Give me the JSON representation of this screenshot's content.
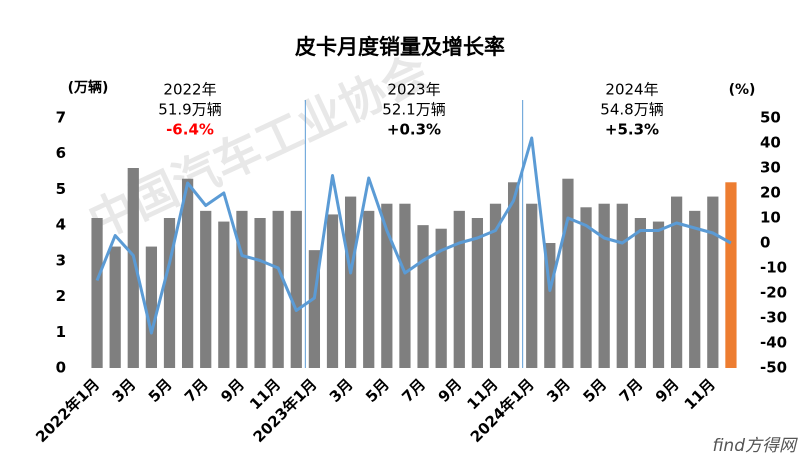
{
  "chart_data": {
    "type": "bar_line",
    "title": "皮卡月度销量及增长率",
    "y_label": "(万辆)",
    "y2_label": "(%)",
    "categories": [
      "2022年1月",
      null,
      "3月",
      null,
      "5月",
      null,
      "7月",
      null,
      "9月",
      null,
      "11月",
      null,
      "2023年1月",
      null,
      "3月",
      null,
      "5月",
      null,
      "7月",
      null,
      "9月",
      null,
      "11月",
      null,
      "2024年1月",
      null,
      "3月",
      null,
      "5月",
      null,
      "7月",
      null,
      "9月",
      null,
      "11月",
      null
    ],
    "series": [
      {
        "type": "bar",
        "color": "#7f7f7f",
        "point_colors": [
          "#7f7f7f",
          "#7f7f7f",
          "#7f7f7f",
          "#7f7f7f",
          "#7f7f7f",
          "#7f7f7f",
          "#7f7f7f",
          "#7f7f7f",
          "#7f7f7f",
          "#7f7f7f",
          "#7f7f7f",
          "#7f7f7f",
          "#7f7f7f",
          "#7f7f7f",
          "#7f7f7f",
          "#7f7f7f",
          "#7f7f7f",
          "#7f7f7f",
          "#7f7f7f",
          "#7f7f7f",
          "#7f7f7f",
          "#7f7f7f",
          "#7f7f7f",
          "#7f7f7f",
          "#7f7f7f",
          "#7f7f7f",
          "#7f7f7f",
          "#7f7f7f",
          "#7f7f7f",
          "#7f7f7f",
          "#7f7f7f",
          "#7f7f7f",
          "#7f7f7f",
          "#7f7f7f",
          "#7f7f7f",
          "#ed7d31"
        ],
        "values": [
          4.2,
          3.4,
          5.6,
          3.4,
          4.2,
          5.3,
          4.4,
          4.1,
          4.4,
          4.2,
          4.4,
          4.4,
          3.3,
          4.3,
          4.8,
          4.4,
          4.6,
          4.6,
          4.0,
          3.9,
          4.4,
          4.2,
          4.6,
          5.2,
          4.6,
          3.5,
          5.3,
          4.5,
          4.6,
          4.6,
          4.2,
          4.1,
          4.8,
          4.4,
          4.8,
          5.2
        ]
      },
      {
        "type": "line",
        "axis": "y2",
        "color": "#5b9bd5",
        "values": [
          -15,
          3,
          -5,
          -36,
          -8,
          24,
          15,
          20,
          -5,
          -7,
          -10,
          -27,
          -22,
          27,
          -12,
          26,
          5,
          -12,
          -7,
          -3,
          0,
          2,
          5,
          17,
          42,
          -19,
          10,
          7,
          2,
          0,
          5,
          5,
          8,
          6,
          4,
          0
        ]
      }
    ],
    "ylim": [
      0,
      7
    ],
    "yticks": [
      0,
      1,
      2,
      3,
      4,
      5,
      6,
      7
    ],
    "y2lim": [
      -50,
      50
    ],
    "y2ticks": [
      -50,
      -40,
      -30,
      -20,
      -10,
      0,
      10,
      20,
      30,
      40,
      50
    ],
    "year_dividers": true,
    "annotations": [
      {
        "year": "2022年",
        "total": "51.9万辆",
        "growth": "-6.4%",
        "growth_color": "#ff0000"
      },
      {
        "year": "2023年",
        "total": "52.1万辆",
        "growth": "+0.3%",
        "growth_color": "#000000"
      },
      {
        "year": "2024年",
        "total": "54.8万辆",
        "growth": "+5.3%",
        "growth_color": "#000000"
      }
    ],
    "watermark": "中国汽车工业协会",
    "logo": "find方得网"
  }
}
